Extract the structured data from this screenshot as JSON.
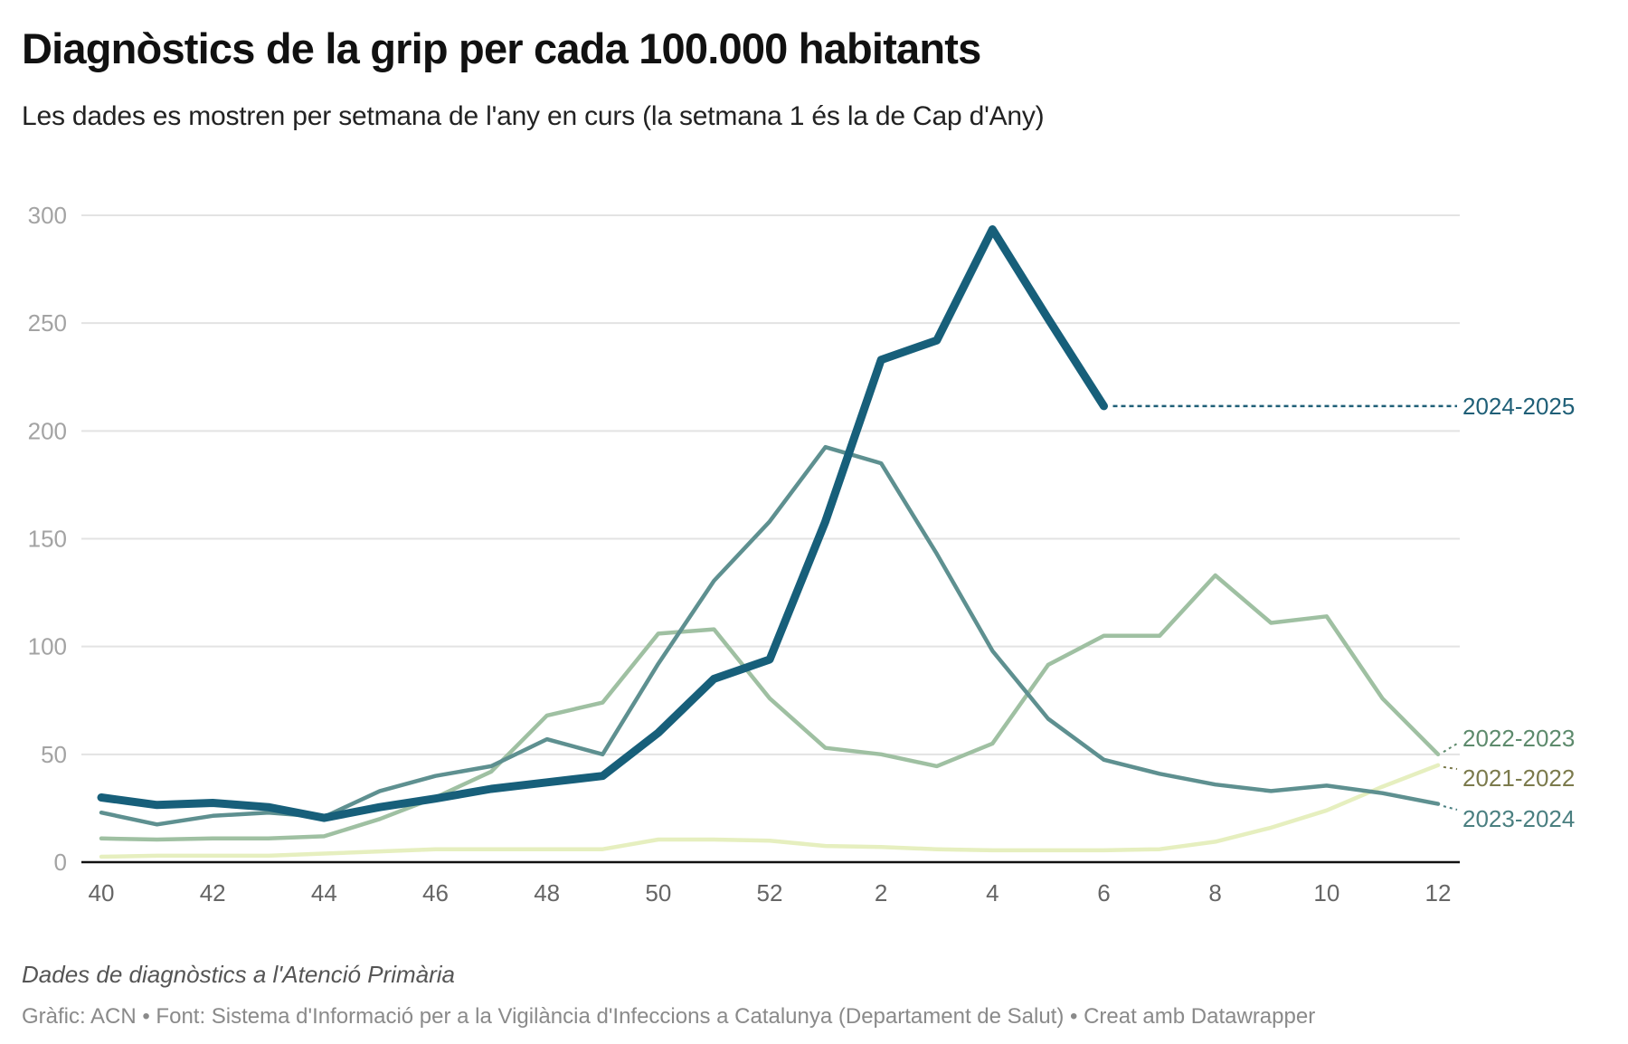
{
  "header": {
    "title": "Diagnòstics de la grip per cada 100.000 habitants",
    "subtitle": "Les dades es mostren per setmana de l'any en curs (la setmana 1 és la de Cap d'Any)"
  },
  "footer": {
    "note": "Dades de diagnòstics a l'Atenció Primària",
    "credits": "Gràfic: ACN • Font: Sistema d'Informació per a la Vigilància d'Infeccions a Catalunya (Departament de Salut) • Creat amb Datawrapper"
  },
  "chart_data": {
    "type": "line",
    "title": "Diagnòstics de la grip per cada 100.000 habitants",
    "subtitle": "Les dades es mostren per setmana de l'any en curs (la setmana 1 és la de Cap d'Any)",
    "xlabel": "",
    "ylabel": "",
    "x": [
      40,
      41,
      42,
      43,
      44,
      45,
      46,
      47,
      48,
      49,
      50,
      51,
      52,
      1,
      2,
      3,
      4,
      5,
      6,
      7,
      8,
      9,
      10,
      11,
      12
    ],
    "x_tick_labels": [
      "40",
      "42",
      "44",
      "46",
      "48",
      "50",
      "52",
      "2",
      "4",
      "6",
      "8",
      "10",
      "12"
    ],
    "ylim": [
      0,
      300
    ],
    "y_ticks": [
      0,
      50,
      100,
      150,
      200,
      250,
      300
    ],
    "grid": true,
    "legend": "inline-right",
    "series": [
      {
        "name": "2021-2022",
        "color": "#e6efbf",
        "label_color": "#7b7a4c",
        "values": [
          2.5,
          3,
          3,
          3,
          4,
          5,
          6,
          6,
          6,
          6,
          10.5,
          10.5,
          10,
          7.5,
          7,
          6,
          5.5,
          5.5,
          5.5,
          6,
          9.5,
          16,
          24,
          35,
          45
        ]
      },
      {
        "name": "2022-2023",
        "color": "#9fc0a2",
        "label_color": "#5d8a6c",
        "values": [
          11,
          10.5,
          11,
          11,
          12,
          20,
          30,
          42,
          68,
          74,
          106,
          108,
          76,
          53,
          50,
          44.5,
          55,
          91.5,
          105,
          105,
          133,
          111,
          114,
          76,
          50
        ]
      },
      {
        "name": "2023-2024",
        "color": "#5e9090",
        "label_color": "#4a7f80",
        "values": [
          23,
          17.5,
          21.5,
          23,
          21,
          33,
          40,
          44.5,
          57,
          50,
          92,
          130.5,
          158,
          192.5,
          185,
          143,
          98,
          66.5,
          47.5,
          41,
          36,
          33,
          35.5,
          32,
          27
        ]
      },
      {
        "name": "2024-2025",
        "color": "#175f7a",
        "label_color": "#1f5f77",
        "values": [
          30,
          26.5,
          27.5,
          25.5,
          20.5,
          25.5,
          29.5,
          34,
          37,
          40,
          60,
          85,
          94,
          158,
          233,
          242,
          293.5,
          252,
          211.5,
          null,
          null,
          null,
          null,
          null,
          null
        ]
      }
    ]
  }
}
